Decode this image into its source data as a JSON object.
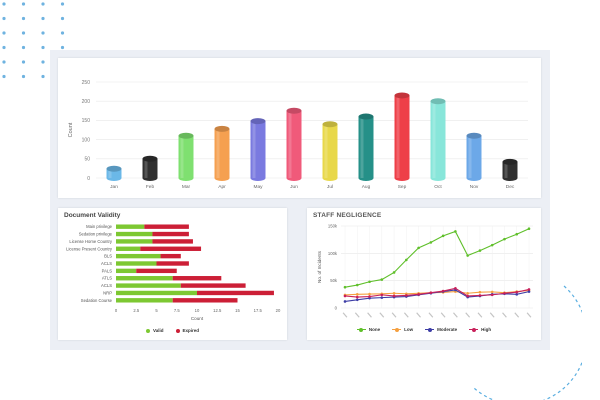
{
  "colors": {
    "page_bg": "#ffffff",
    "panel_bg": "#eceff5",
    "dots": "#6fb3e0",
    "arc": "#5aaee0",
    "grid": "#e8e8e8"
  },
  "top_chart": {
    "chart_data": {
      "type": "bar",
      "style": "3d-cylinder",
      "ylabel": "Count",
      "xlabel": "",
      "ylim": [
        0,
        250
      ],
      "yticks": [
        0,
        50,
        100,
        150,
        200,
        250
      ],
      "grid": true,
      "categories": [
        "Jan",
        "Feb",
        "Mar",
        "Apr",
        "May",
        "Jun",
        "Jul",
        "Aug",
        "Sep",
        "Oct",
        "Nov",
        "Dec"
      ],
      "values": [
        24,
        50,
        110,
        128,
        148,
        175,
        140,
        160,
        215,
        200,
        110,
        42
      ],
      "colors": [
        "#6bb8e8",
        "#303030",
        "#7fe070",
        "#f5a050",
        "#7a7ae0",
        "#f05a7a",
        "#e8d84a",
        "#259088",
        "#ee3f48",
        "#88e6da",
        "#6ca8e8",
        "#303030"
      ]
    }
  },
  "document_validity": {
    "title": "Document Validity",
    "chart_data": {
      "type": "bar",
      "orientation": "horizontal",
      "stacked": true,
      "xlabel": "Count",
      "ylabel": "",
      "xlim": [
        0,
        20
      ],
      "xticks": [
        0,
        2.5,
        5,
        7.5,
        10,
        12.5,
        15,
        17.5,
        20
      ],
      "xtick_labels": [
        "0",
        "2.5",
        "5",
        "7.5",
        "10",
        "12.5",
        "15",
        "17.5",
        "20"
      ],
      "legend_position": "bottom",
      "categories": [
        "Main privilege",
        "Sedation privilege",
        "License Home Country",
        "License Present Country",
        "BLS",
        "ACLS",
        "PALS",
        "ATLS",
        "ACLS",
        "NRP",
        "Sedation Course"
      ],
      "series": [
        {
          "name": "Valid",
          "color": "#7dc832",
          "values": [
            3.5,
            4.5,
            4.5,
            3,
            5.5,
            5,
            2.5,
            7,
            8,
            10,
            7
          ]
        },
        {
          "name": "Expired",
          "color": "#cc1f36",
          "values": [
            5.5,
            4.5,
            5,
            7.5,
            2.5,
            4,
            5,
            6,
            8,
            9.5,
            8
          ]
        }
      ]
    }
  },
  "staff_negligence": {
    "title": "STAFF NEGLIGENCE",
    "chart_data": {
      "type": "line",
      "ylabel": "No. of Incidents",
      "xlabel": "",
      "ylim": [
        0,
        150000
      ],
      "yticks": [
        0,
        50000,
        100000,
        150000
      ],
      "ytick_labels": [
        "0",
        "50k",
        "100k",
        "150k"
      ],
      "grid": true,
      "legend_position": "bottom",
      "x_count": 16,
      "series": [
        {
          "name": "None",
          "color": "#5fbf2a",
          "values": [
            38000,
            42000,
            48000,
            52000,
            65000,
            88000,
            110000,
            120000,
            132000,
            140000,
            96000,
            105000,
            115000,
            126000,
            135000,
            145000
          ]
        },
        {
          "name": "Low",
          "color": "#f5a040",
          "values": [
            24000,
            25000,
            25500,
            26000,
            27000,
            26000,
            27000,
            28000,
            28500,
            30000,
            27000,
            29000,
            29500,
            28000,
            30000,
            32000
          ]
        },
        {
          "name": "Moderate",
          "color": "#3d3da6",
          "values": [
            12000,
            15000,
            18000,
            19000,
            20000,
            21000,
            24000,
            27000,
            30000,
            33000,
            20000,
            22000,
            25000,
            26000,
            25000,
            30000
          ]
        },
        {
          "name": "High",
          "color": "#c8205a",
          "values": [
            22000,
            20000,
            21000,
            24000,
            22000,
            23000,
            25000,
            28000,
            31000,
            36000,
            22000,
            23000,
            24000,
            27000,
            29000,
            34000
          ]
        }
      ]
    }
  }
}
